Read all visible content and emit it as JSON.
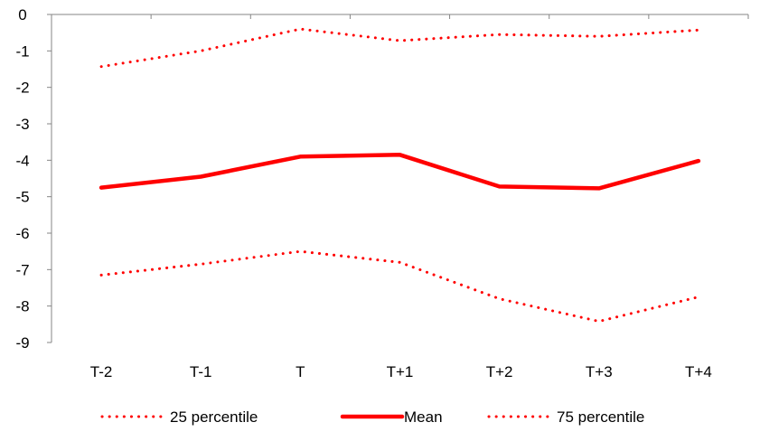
{
  "chart_data": {
    "type": "line",
    "title": "",
    "xlabel": "",
    "ylabel": "",
    "categories": [
      "T-2",
      "T-1",
      "T",
      "T+1",
      "T+2",
      "T+3",
      "T+4"
    ],
    "y_ticks": [
      "0",
      "-1",
      "-2",
      "-3",
      "-4",
      "-5",
      "-6",
      "-7",
      "-8",
      "-9"
    ],
    "ylim": [
      -9,
      0
    ],
    "x_axis_position": "top (at y = 0)",
    "grid": false,
    "legend_position": "bottom",
    "series": [
      {
        "name": "25 percentile",
        "style": "dotted",
        "color": "#ff0000",
        "values": [
          -7.15,
          -6.85,
          -6.5,
          -6.8,
          -7.8,
          -8.42,
          -7.75
        ]
      },
      {
        "name": "Mean",
        "style": "solid",
        "color": "#ff0000",
        "values": [
          -4.75,
          -4.45,
          -3.9,
          -3.85,
          -4.72,
          -4.77,
          -4.02
        ]
      },
      {
        "name": "75 percentile",
        "style": "dotted",
        "color": "#ff0000",
        "values": [
          -1.43,
          -1.0,
          -0.4,
          -0.72,
          -0.55,
          -0.6,
          -0.43
        ]
      }
    ]
  }
}
